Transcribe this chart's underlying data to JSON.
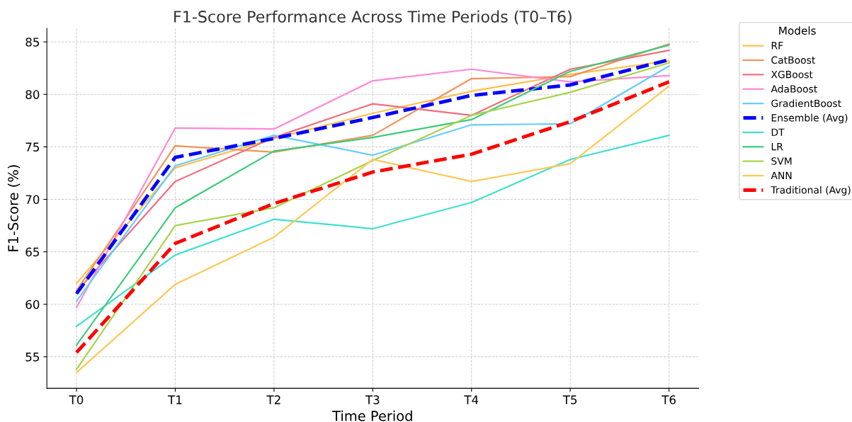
{
  "chart_data": {
    "type": "line",
    "title": "F1-Score Performance Across Time Periods (T0–T6)",
    "xlabel": "Time Period",
    "ylabel": "F1-Score (%)",
    "legend_title": "Models",
    "legend": "right",
    "categories": [
      "T0",
      "T1",
      "T2",
      "T3",
      "T4",
      "T5",
      "T6"
    ],
    "ylim": [
      52.0,
      86.3
    ],
    "yticks": [
      55,
      60,
      65,
      70,
      75,
      80,
      85
    ],
    "grid": true,
    "series": [
      {
        "name": "RF",
        "color": "#ffc04d",
        "values": [
          62.0,
          73.0,
          75.8,
          78.2,
          80.3,
          81.9,
          83.2
        ]
      },
      {
        "name": "CatBoost",
        "color": "#f4935a",
        "values": [
          61.3,
          75.1,
          74.5,
          76.1,
          81.5,
          81.7,
          84.8
        ]
      },
      {
        "name": "XGBoost",
        "color": "#ef6f7f",
        "values": [
          61.2,
          71.7,
          75.9,
          79.1,
          78.0,
          82.4,
          84.2
        ]
      },
      {
        "name": "AdaBoost",
        "color": "#ff88d8",
        "values": [
          59.7,
          76.8,
          76.7,
          81.3,
          82.4,
          81.2,
          81.8
        ]
      },
      {
        "name": "GradientBoost",
        "color": "#66ccff",
        "values": [
          60.3,
          73.2,
          76.1,
          74.2,
          77.1,
          77.2,
          82.7
        ]
      },
      {
        "name": "Ensemble (Avg)",
        "color": "#0000ff",
        "line_style": "dashed",
        "values": [
          61.0,
          74.0,
          75.8,
          77.8,
          79.9,
          80.9,
          83.3
        ]
      },
      {
        "name": "DT",
        "color": "#40e0d0",
        "values": [
          57.9,
          64.7,
          68.1,
          67.2,
          69.7,
          73.8,
          76.1
        ]
      },
      {
        "name": "LR",
        "color": "#3ecb7a",
        "values": [
          56.1,
          69.2,
          74.6,
          75.9,
          77.6,
          82.2,
          84.7
        ]
      },
      {
        "name": "SVM",
        "color": "#a8d44c",
        "values": [
          53.8,
          67.5,
          69.2,
          73.7,
          78.0,
          80.2,
          83.0
        ]
      },
      {
        "name": "ANN",
        "color": "#ffc857",
        "values": [
          53.5,
          61.9,
          66.4,
          73.8,
          71.7,
          73.4,
          80.8
        ]
      },
      {
        "name": "Traditional (Avg)",
        "color": "#ff0000",
        "line_style": "dashed",
        "values": [
          55.4,
          65.8,
          69.6,
          72.6,
          74.3,
          77.4,
          81.2
        ]
      }
    ]
  }
}
